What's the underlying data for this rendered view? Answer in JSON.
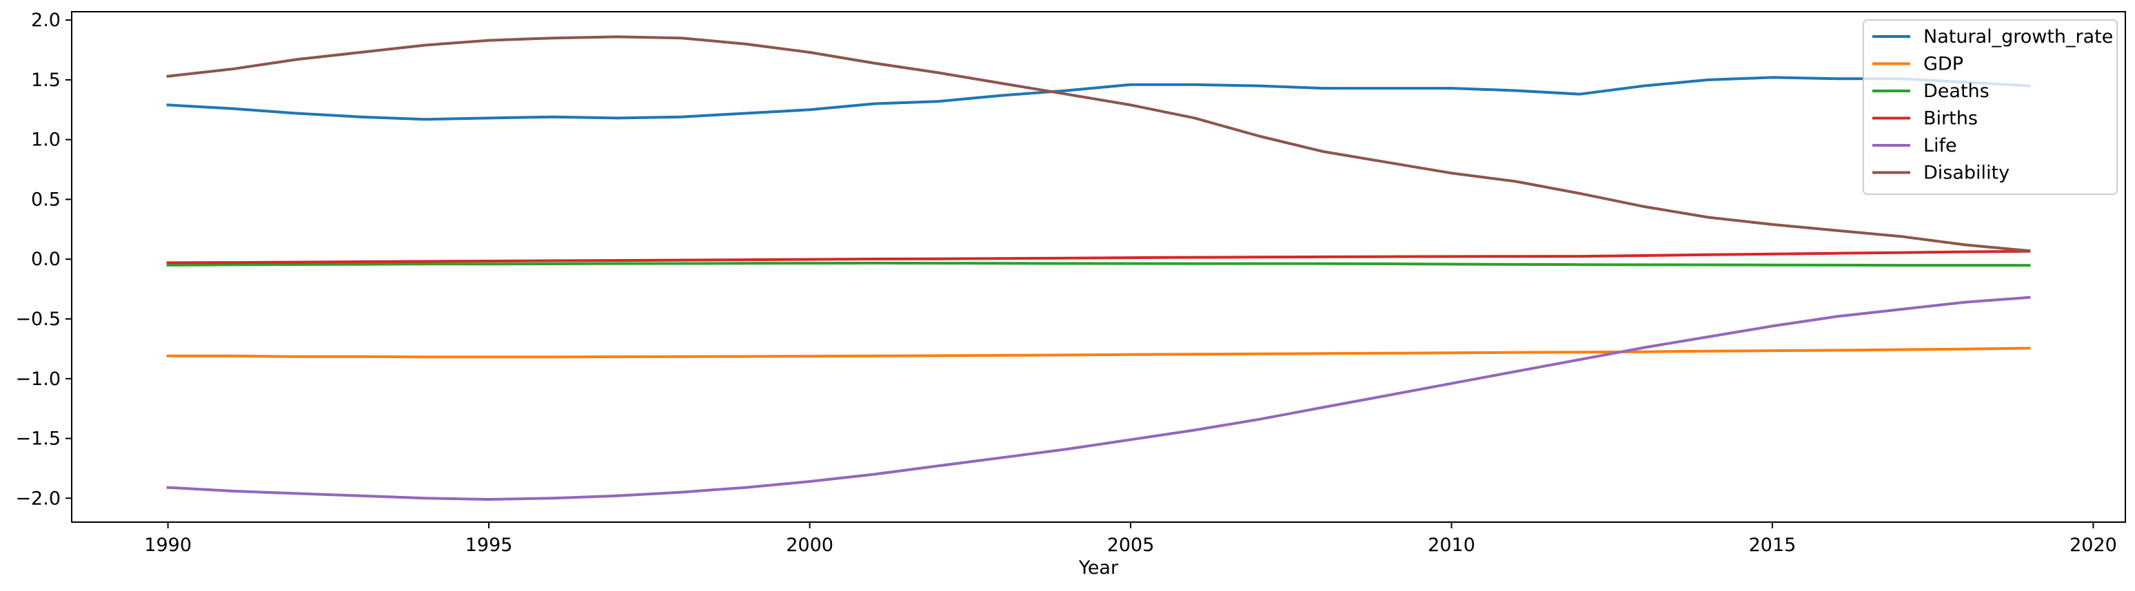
{
  "chart_data": {
    "type": "line",
    "title": "",
    "xlabel": "Year",
    "ylabel": "",
    "xlim": [
      1988.5,
      2020.5
    ],
    "ylim": [
      -2.2,
      2.07
    ],
    "xticks": [
      1990,
      1995,
      2000,
      2005,
      2010,
      2015,
      2020
    ],
    "xtick_labels": [
      "1990",
      "1995",
      "2000",
      "2005",
      "2010",
      "2015",
      "2020"
    ],
    "yticks": [
      -2.0,
      -1.5,
      -1.0,
      -0.5,
      0.0,
      0.5,
      1.0,
      1.5,
      2.0
    ],
    "ytick_labels": [
      "−2.0",
      "−1.5",
      "−1.0",
      "−0.5",
      "0.0",
      "0.5",
      "1.0",
      "1.5",
      "2.0"
    ],
    "grid": false,
    "legend_position": "top-right",
    "x": [
      1990,
      1991,
      1992,
      1993,
      1994,
      1995,
      1996,
      1997,
      1998,
      1999,
      2000,
      2001,
      2002,
      2003,
      2004,
      2005,
      2006,
      2007,
      2008,
      2009,
      2010,
      2011,
      2012,
      2013,
      2014,
      2015,
      2016,
      2017,
      2018,
      2019
    ],
    "series": [
      {
        "name": "Natural_growth_rate",
        "color": "#1f77b4",
        "values": [
          1.29,
          1.26,
          1.22,
          1.19,
          1.17,
          1.18,
          1.19,
          1.18,
          1.19,
          1.22,
          1.25,
          1.3,
          1.32,
          1.37,
          1.41,
          1.46,
          1.46,
          1.45,
          1.43,
          1.43,
          1.43,
          1.41,
          1.38,
          1.45,
          1.5,
          1.52,
          1.51,
          1.51,
          1.48,
          1.45
        ]
      },
      {
        "name": "GDP",
        "color": "#ff7f0e",
        "values": [
          -0.81,
          -0.81,
          -0.815,
          -0.815,
          -0.818,
          -0.818,
          -0.818,
          -0.817,
          -0.815,
          -0.814,
          -0.812,
          -0.81,
          -0.808,
          -0.805,
          -0.802,
          -0.798,
          -0.795,
          -0.792,
          -0.79,
          -0.787,
          -0.784,
          -0.78,
          -0.778,
          -0.775,
          -0.77,
          -0.766,
          -0.762,
          -0.757,
          -0.752,
          -0.745
        ]
      },
      {
        "name": "Deaths",
        "color": "#2ca02c",
        "values": [
          -0.05,
          -0.047,
          -0.045,
          -0.043,
          -0.041,
          -0.04,
          -0.039,
          -0.037,
          -0.036,
          -0.035,
          -0.034,
          -0.033,
          -0.034,
          -0.035,
          -0.036,
          -0.037,
          -0.038,
          -0.038,
          -0.038,
          -0.039,
          -0.042,
          -0.044,
          -0.046,
          -0.047,
          -0.048,
          -0.049,
          -0.05,
          -0.051,
          -0.051,
          -0.052
        ]
      },
      {
        "name": "Births",
        "color": "#d62728",
        "values": [
          -0.03,
          -0.028,
          -0.025,
          -0.022,
          -0.019,
          -0.016,
          -0.013,
          -0.011,
          -0.008,
          -0.005,
          -0.002,
          0.001,
          0.003,
          0.006,
          0.009,
          0.012,
          0.015,
          0.017,
          0.019,
          0.021,
          0.022,
          0.023,
          0.024,
          0.03,
          0.037,
          0.043,
          0.049,
          0.055,
          0.061,
          0.066
        ]
      },
      {
        "name": "Life",
        "color": "#9467bd",
        "values": [
          -1.91,
          -1.94,
          -1.96,
          -1.98,
          -2.0,
          -2.01,
          -2.0,
          -1.98,
          -1.95,
          -1.91,
          -1.86,
          -1.8,
          -1.73,
          -1.66,
          -1.59,
          -1.51,
          -1.43,
          -1.34,
          -1.24,
          -1.14,
          -1.04,
          -0.94,
          -0.84,
          -0.74,
          -0.65,
          -0.56,
          -0.48,
          -0.42,
          -0.36,
          -0.32
        ]
      },
      {
        "name": "Disability",
        "color": "#8c564b",
        "values": [
          1.53,
          1.59,
          1.67,
          1.73,
          1.79,
          1.83,
          1.85,
          1.86,
          1.85,
          1.8,
          1.73,
          1.64,
          1.56,
          1.47,
          1.38,
          1.29,
          1.18,
          1.03,
          0.9,
          0.81,
          0.72,
          0.65,
          0.55,
          0.44,
          0.35,
          0.29,
          0.24,
          0.19,
          0.12,
          0.07
        ]
      }
    ]
  }
}
